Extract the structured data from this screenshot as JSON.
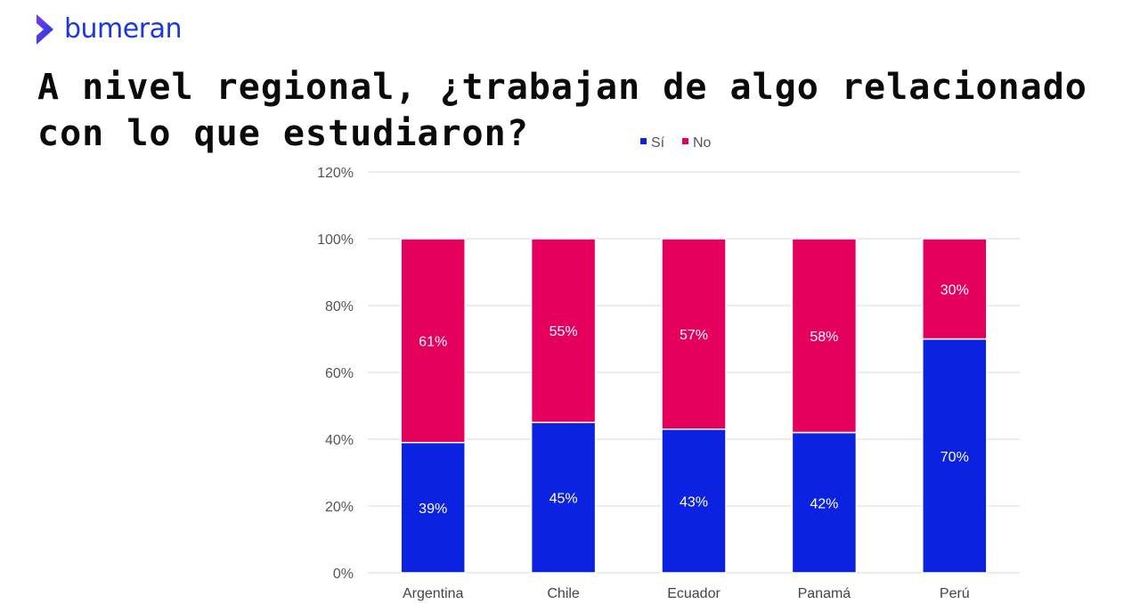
{
  "brand": {
    "name": "bumeran",
    "color": "#1b38e0",
    "accent": "#7c3aed",
    "logo_icon": "bumeran-chevron-icon"
  },
  "headline": "A nivel regional, ¿trabajan de algo relacionado con lo que estudiaron?",
  "chart_data": {
    "type": "bar",
    "stacked": true,
    "title": "",
    "xlabel": "",
    "ylabel": "",
    "categories": [
      "Argentina",
      "Chile",
      "Ecuador",
      "Panamá",
      "Perú"
    ],
    "series": [
      {
        "name": "Sí",
        "color": "#0b22e0",
        "values": [
          39,
          45,
          43,
          42,
          70
        ]
      },
      {
        "name": "No",
        "color": "#e6005e",
        "values": [
          61,
          55,
          57,
          58,
          30
        ]
      }
    ],
    "ylim": [
      0,
      120
    ],
    "yticks": [
      0,
      20,
      40,
      60,
      80,
      100,
      120
    ],
    "ytick_labels": [
      "0%",
      "20%",
      "40%",
      "60%",
      "80%",
      "100%",
      "120%"
    ],
    "data_labels": [
      [
        "39%",
        "45%",
        "43%",
        "42%",
        "70%"
      ],
      [
        "61%",
        "55%",
        "57%",
        "58%",
        "30%"
      ]
    ],
    "grid": true,
    "legend_position": "top-center"
  }
}
